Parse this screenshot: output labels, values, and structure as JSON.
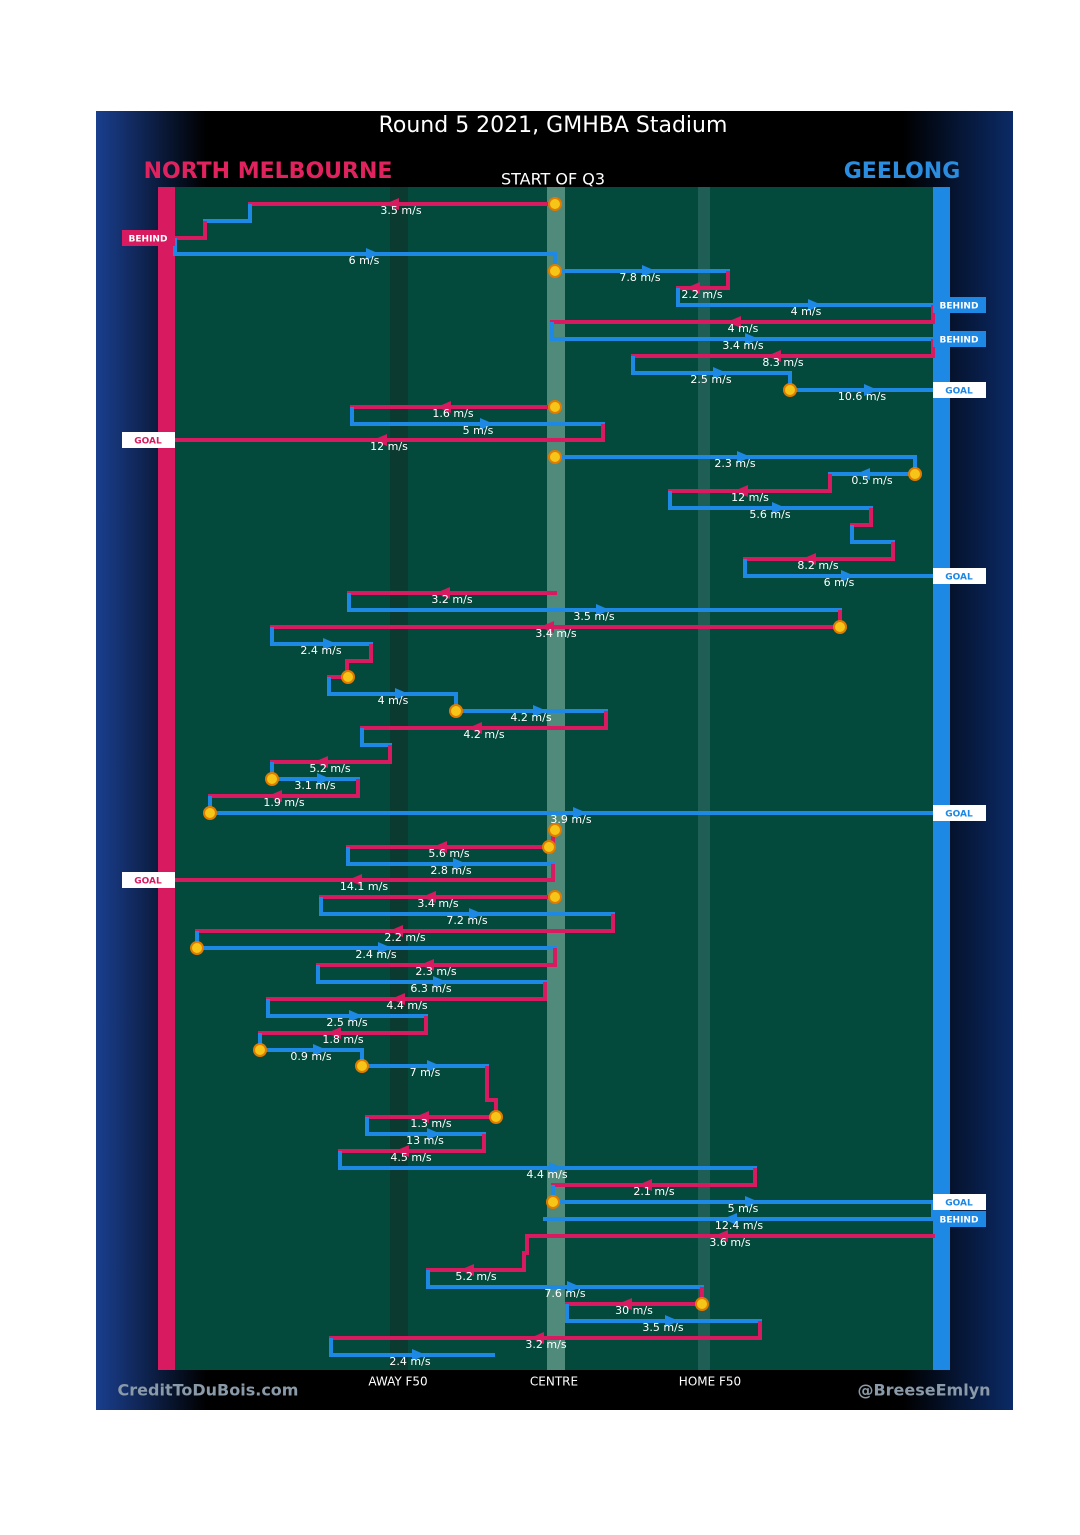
{
  "title": "Round 5 2021, GMHBA Stadium",
  "teams": {
    "left": "NORTH MELBOURNE",
    "right": "GEELONG"
  },
  "period": "START OF Q3",
  "speeds": [
    "3.5 m/s",
    "6 m/s",
    "7.8 m/s",
    "2.2 m/s",
    "4 m/s",
    "4 m/s",
    "3.4 m/s",
    "8.3 m/s",
    "2.5 m/s",
    "10.6 m/s",
    "1.6 m/s",
    "5 m/s",
    "12 m/s",
    "2.3 m/s",
    "0.5 m/s",
    "12 m/s",
    "5.6 m/s",
    "8.2 m/s",
    "6 m/s",
    "3.2 m/s",
    "3.5 m/s",
    "3.4 m/s",
    "2.4 m/s",
    "4 m/s",
    "4.2 m/s",
    "4.2 m/s",
    "5.2 m/s",
    "3.1 m/s",
    "1.9 m/s",
    "3.9 m/s",
    "5.6 m/s",
    "2.8 m/s",
    "14.1 m/s",
    "3.4 m/s",
    "7.2 m/s",
    "2.2 m/s",
    "2.4 m/s",
    "2.3 m/s",
    "6.3 m/s",
    "4.4 m/s",
    "2.5 m/s",
    "1.8 m/s",
    "0.9 m/s",
    "7 m/s",
    "1.3 m/s",
    "13 m/s",
    "4.5 m/s",
    "4.4 m/s",
    "2.1 m/s",
    "5 m/s",
    "12.4 m/s",
    "3.6 m/s",
    "5.2 m/s",
    "7.6 m/s",
    "30 m/s",
    "3.5 m/s",
    "3.2 m/s",
    "2.4 m/s"
  ],
  "outcomes": [
    "BEHIND",
    "BEHIND",
    "BEHIND",
    "GOAL",
    "GOAL",
    "GOAL",
    "GOAL",
    "GOAL",
    "GOAL",
    "BEHIND"
  ],
  "field_marks": [
    "AWAY F50",
    "CENTRE",
    "HOME F50"
  ],
  "credits": {
    "left": "CreditToDuBois.com",
    "right": "@BreeseEmlyn"
  }
}
